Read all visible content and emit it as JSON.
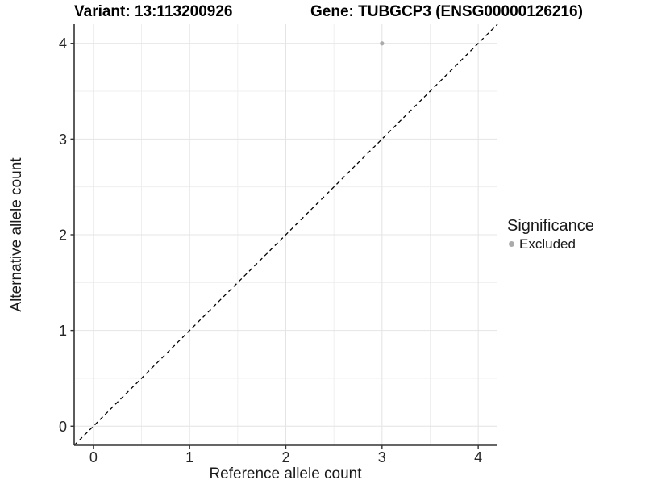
{
  "header": {
    "variant_title": "Variant: 13:113200926",
    "gene_title": "Gene: TUBGCP3 (ENSG00000126216)"
  },
  "chart_data": {
    "type": "scatter",
    "xlabel": "Reference allele count",
    "ylabel": "Alternative allele count",
    "xlim": [
      -0.2,
      4.2
    ],
    "ylim": [
      -0.2,
      4.2
    ],
    "x_ticks": [
      0,
      1,
      2,
      3,
      4
    ],
    "y_ticks": [
      0,
      1,
      2,
      3,
      4
    ],
    "grid": {
      "major": true,
      "minor": true,
      "minor_step": 0.5
    },
    "reference_line": {
      "type": "identity",
      "slope": 1,
      "intercept": 0,
      "style": "dashed"
    },
    "series": [
      {
        "name": "Excluded",
        "color": "#ababab",
        "points": [
          {
            "x": 3,
            "y": 4
          }
        ]
      }
    ]
  },
  "legend": {
    "title": "Significance",
    "position": "right",
    "items": [
      {
        "label": "Excluded",
        "color": "#ababab",
        "marker": "circle"
      }
    ]
  },
  "colors": {
    "background": "#ffffff",
    "grid_major": "#e4e4e4",
    "grid_minor": "#efefef",
    "axis_line": "#333333",
    "reference_line": "#000000",
    "tick_text": "#262626"
  }
}
